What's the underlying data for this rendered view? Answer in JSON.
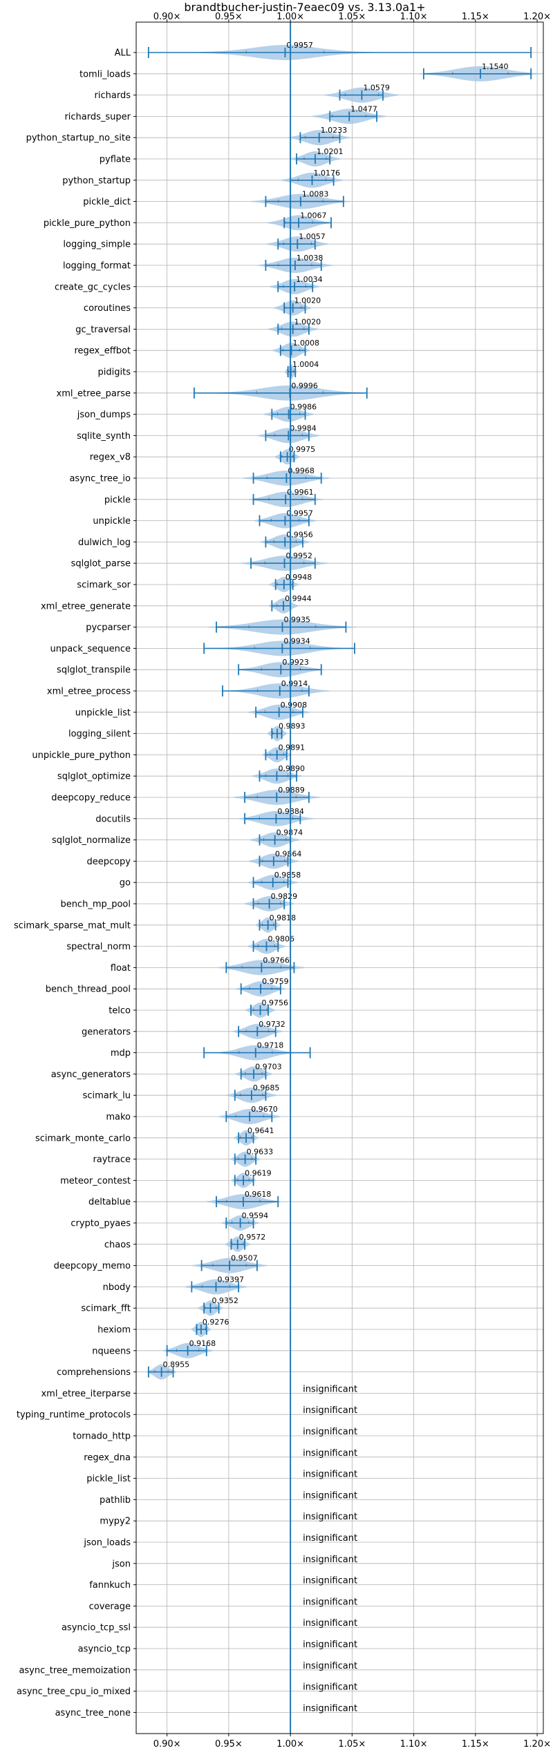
{
  "chart_data": {
    "type": "violin",
    "title": "brandtbucher-justin-7eaec09 vs. 3.13.0a1+",
    "xlim": [
      0.875,
      1.205
    ],
    "xticks": [
      0.9,
      0.95,
      1.0,
      1.05,
      1.1,
      1.15,
      1.2
    ],
    "xtick_labels": [
      "0.90×",
      "0.95×",
      "1.00×",
      "1.05×",
      "1.10×",
      "1.15×",
      "1.20×"
    ],
    "reference_line": 1.0,
    "grid": true,
    "colors": {
      "violin": "#a9c9e6",
      "stat": "#1f77b4",
      "grid": "#b0b0b0",
      "axis": "#000000"
    },
    "insignificant_text": "insignificant",
    "benchmarks": [
      {
        "name": "ALL",
        "mean": 0.9957,
        "label": "0.9957",
        "min": 0.885,
        "max": 1.195,
        "spread": 0.07
      },
      {
        "name": "tomli_loads",
        "mean": 1.154,
        "label": "1.1540",
        "min": 1.108,
        "max": 1.195,
        "spread": 0.05
      },
      {
        "name": "richards",
        "mean": 1.0579,
        "label": "1.0579",
        "min": 1.04,
        "max": 1.075,
        "spread": 0.03
      },
      {
        "name": "richards_super",
        "mean": 1.0477,
        "label": "1.0477",
        "min": 1.032,
        "max": 1.07,
        "spread": 0.03
      },
      {
        "name": "python_startup_no_site",
        "mean": 1.0233,
        "label": "1.0233",
        "min": 1.008,
        "max": 1.04,
        "spread": 0.025
      },
      {
        "name": "pyflate",
        "mean": 1.0201,
        "label": "1.0201",
        "min": 1.005,
        "max": 1.032,
        "spread": 0.02
      },
      {
        "name": "python_startup",
        "mean": 1.0176,
        "label": "1.0176",
        "min": 1.0,
        "max": 1.035,
        "spread": 0.025
      },
      {
        "name": "pickle_dict",
        "mean": 1.0083,
        "label": "1.0083",
        "min": 0.98,
        "max": 1.043,
        "spread": 0.04
      },
      {
        "name": "pickle_pure_python",
        "mean": 1.0067,
        "label": "1.0067",
        "min": 0.995,
        "max": 1.033,
        "spread": 0.025
      },
      {
        "name": "logging_simple",
        "mean": 1.0057,
        "label": "1.0057",
        "min": 0.99,
        "max": 1.02,
        "spread": 0.025
      },
      {
        "name": "logging_format",
        "mean": 1.0038,
        "label": "1.0038",
        "min": 0.98,
        "max": 1.025,
        "spread": 0.03
      },
      {
        "name": "create_gc_cycles",
        "mean": 1.0034,
        "label": "1.0034",
        "min": 0.99,
        "max": 1.018,
        "spread": 0.02
      },
      {
        "name": "coroutines",
        "mean": 1.002,
        "label": "1.0020",
        "min": 0.995,
        "max": 1.012,
        "spread": 0.015
      },
      {
        "name": "gc_traversal",
        "mean": 1.002,
        "label": "1.0020",
        "min": 0.99,
        "max": 1.015,
        "spread": 0.02
      },
      {
        "name": "regex_effbot",
        "mean": 1.0008,
        "label": "1.0008",
        "min": 0.992,
        "max": 1.012,
        "spread": 0.015
      },
      {
        "name": "pidigits",
        "mean": 1.0004,
        "label": "1.0004",
        "min": 0.998,
        "max": 1.004,
        "spread": 0.005
      },
      {
        "name": "xml_etree_parse",
        "mean": 0.9996,
        "label": "0.9996",
        "min": 0.922,
        "max": 1.062,
        "spread": 0.06
      },
      {
        "name": "json_dumps",
        "mean": 0.9986,
        "label": "0.9986",
        "min": 0.985,
        "max": 1.012,
        "spread": 0.02
      },
      {
        "name": "sqlite_synth",
        "mean": 0.9984,
        "label": "0.9984",
        "min": 0.98,
        "max": 1.015,
        "spread": 0.025
      },
      {
        "name": "regex_v8",
        "mean": 0.9975,
        "label": "0.9975",
        "min": 0.992,
        "max": 1.003,
        "spread": 0.01
      },
      {
        "name": "async_tree_io",
        "mean": 0.9968,
        "label": "0.9968",
        "min": 0.97,
        "max": 1.025,
        "spread": 0.035
      },
      {
        "name": "pickle",
        "mean": 0.9961,
        "label": "0.9961",
        "min": 0.97,
        "max": 1.02,
        "spread": 0.03
      },
      {
        "name": "unpickle",
        "mean": 0.9957,
        "label": "0.9957",
        "min": 0.975,
        "max": 1.015,
        "spread": 0.025
      },
      {
        "name": "dulwich_log",
        "mean": 0.9956,
        "label": "0.9956",
        "min": 0.98,
        "max": 1.01,
        "spread": 0.02
      },
      {
        "name": "sqlglot_parse",
        "mean": 0.9952,
        "label": "0.9952",
        "min": 0.968,
        "max": 1.02,
        "spread": 0.035
      },
      {
        "name": "scimark_sor",
        "mean": 0.9948,
        "label": "0.9948",
        "min": 0.988,
        "max": 1.002,
        "spread": 0.012
      },
      {
        "name": "xml_etree_generate",
        "mean": 0.9944,
        "label": "0.9944",
        "min": 0.985,
        "max": 1.0,
        "spread": 0.012
      },
      {
        "name": "pycparser",
        "mean": 0.9935,
        "label": "0.9935",
        "min": 0.94,
        "max": 1.045,
        "spread": 0.06
      },
      {
        "name": "unpack_sequence",
        "mean": 0.9934,
        "label": "0.9934",
        "min": 0.93,
        "max": 1.052,
        "spread": 0.05
      },
      {
        "name": "sqlglot_transpile",
        "mean": 0.9923,
        "label": "0.9923",
        "min": 0.958,
        "max": 1.025,
        "spread": 0.035
      },
      {
        "name": "xml_etree_process",
        "mean": 0.9914,
        "label": "0.9914",
        "min": 0.945,
        "max": 1.015,
        "spread": 0.04
      },
      {
        "name": "unpickle_list",
        "mean": 0.9908,
        "label": "0.9908",
        "min": 0.972,
        "max": 1.01,
        "spread": 0.025
      },
      {
        "name": "logging_silent",
        "mean": 0.9893,
        "label": "0.9893",
        "min": 0.985,
        "max": 0.993,
        "spread": 0.008
      },
      {
        "name": "unpickle_pure_python",
        "mean": 0.9891,
        "label": "0.9891",
        "min": 0.98,
        "max": 0.997,
        "spread": 0.012
      },
      {
        "name": "sqlglot_optimize",
        "mean": 0.989,
        "label": "0.9890",
        "min": 0.975,
        "max": 1.005,
        "spread": 0.02
      },
      {
        "name": "deepcopy_reduce",
        "mean": 0.9889,
        "label": "0.9889",
        "min": 0.963,
        "max": 1.015,
        "spread": 0.035
      },
      {
        "name": "docutils",
        "mean": 0.9884,
        "label": "0.9884",
        "min": 0.963,
        "max": 1.008,
        "spread": 0.03
      },
      {
        "name": "sqlglot_normalize",
        "mean": 0.9874,
        "label": "0.9874",
        "min": 0.975,
        "max": 1.0,
        "spread": 0.02
      },
      {
        "name": "deepcopy",
        "mean": 0.9864,
        "label": "0.9864",
        "min": 0.975,
        "max": 0.998,
        "spread": 0.02
      },
      {
        "name": "go",
        "mean": 0.9858,
        "label": "0.9858",
        "min": 0.97,
        "max": 0.998,
        "spread": 0.02
      },
      {
        "name": "bench_mp_pool",
        "mean": 0.9829,
        "label": "0.9829",
        "min": 0.97,
        "max": 0.995,
        "spread": 0.02
      },
      {
        "name": "scimark_sparse_mat_mult",
        "mean": 0.9818,
        "label": "0.9818",
        "min": 0.975,
        "max": 0.988,
        "spread": 0.01
      },
      {
        "name": "spectral_norm",
        "mean": 0.9806,
        "label": "0.9806",
        "min": 0.97,
        "max": 0.99,
        "spread": 0.015
      },
      {
        "name": "float",
        "mean": 0.9766,
        "label": "0.9766",
        "min": 0.948,
        "max": 1.003,
        "spread": 0.035
      },
      {
        "name": "bench_thread_pool",
        "mean": 0.9759,
        "label": "0.9759",
        "min": 0.96,
        "max": 0.992,
        "spread": 0.02
      },
      {
        "name": "telco",
        "mean": 0.9756,
        "label": "0.9756",
        "min": 0.968,
        "max": 0.982,
        "spread": 0.012
      },
      {
        "name": "generators",
        "mean": 0.9732,
        "label": "0.9732",
        "min": 0.958,
        "max": 0.988,
        "spread": 0.02
      },
      {
        "name": "mdp",
        "mean": 0.9718,
        "label": "0.9718",
        "min": 0.93,
        "max": 1.016,
        "spread": 0.03
      },
      {
        "name": "async_generators",
        "mean": 0.9703,
        "label": "0.9703",
        "min": 0.96,
        "max": 0.98,
        "spread": 0.015
      },
      {
        "name": "scimark_lu",
        "mean": 0.9685,
        "label": "0.9685",
        "min": 0.955,
        "max": 0.98,
        "spread": 0.02
      },
      {
        "name": "mako",
        "mean": 0.967,
        "label": "0.9670",
        "min": 0.948,
        "max": 0.985,
        "spread": 0.025
      },
      {
        "name": "scimark_monte_carlo",
        "mean": 0.9641,
        "label": "0.9641",
        "min": 0.958,
        "max": 0.97,
        "spread": 0.01
      },
      {
        "name": "raytrace",
        "mean": 0.9633,
        "label": "0.9633",
        "min": 0.955,
        "max": 0.972,
        "spread": 0.012
      },
      {
        "name": "meteor_contest",
        "mean": 0.9619,
        "label": "0.9619",
        "min": 0.955,
        "max": 0.97,
        "spread": 0.01
      },
      {
        "name": "deltablue",
        "mean": 0.9618,
        "label": "0.9618",
        "min": 0.94,
        "max": 0.99,
        "spread": 0.03
      },
      {
        "name": "crypto_pyaes",
        "mean": 0.9594,
        "label": "0.9594",
        "min": 0.948,
        "max": 0.97,
        "spread": 0.015
      },
      {
        "name": "chaos",
        "mean": 0.9572,
        "label": "0.9572",
        "min": 0.952,
        "max": 0.963,
        "spread": 0.01
      },
      {
        "name": "deepcopy_memo",
        "mean": 0.9507,
        "label": "0.9507",
        "min": 0.928,
        "max": 0.973,
        "spread": 0.03
      },
      {
        "name": "nbody",
        "mean": 0.9397,
        "label": "0.9397",
        "min": 0.92,
        "max": 0.958,
        "spread": 0.025
      },
      {
        "name": "scimark_fft",
        "mean": 0.9352,
        "label": "0.9352",
        "min": 0.93,
        "max": 0.942,
        "spread": 0.01
      },
      {
        "name": "hexiom",
        "mean": 0.9276,
        "label": "0.9276",
        "min": 0.924,
        "max": 0.932,
        "spread": 0.008
      },
      {
        "name": "nqueens",
        "mean": 0.9168,
        "label": "0.9168",
        "min": 0.9,
        "max": 0.932,
        "spread": 0.02
      },
      {
        "name": "comprehensions",
        "mean": 0.8955,
        "label": "0.8955",
        "min": 0.885,
        "max": 0.905,
        "spread": 0.012
      },
      {
        "name": "xml_etree_iterparse",
        "insignificant": true
      },
      {
        "name": "typing_runtime_protocols",
        "insignificant": true
      },
      {
        "name": "tornado_http",
        "insignificant": true
      },
      {
        "name": "regex_dna",
        "insignificant": true
      },
      {
        "name": "pickle_list",
        "insignificant": true
      },
      {
        "name": "pathlib",
        "insignificant": true
      },
      {
        "name": "mypy2",
        "insignificant": true
      },
      {
        "name": "json_loads",
        "insignificant": true
      },
      {
        "name": "json",
        "insignificant": true
      },
      {
        "name": "fannkuch",
        "insignificant": true
      },
      {
        "name": "coverage",
        "insignificant": true
      },
      {
        "name": "asyncio_tcp_ssl",
        "insignificant": true
      },
      {
        "name": "asyncio_tcp",
        "insignificant": true
      },
      {
        "name": "async_tree_memoization",
        "insignificant": true
      },
      {
        "name": "async_tree_cpu_io_mixed",
        "insignificant": true
      },
      {
        "name": "async_tree_none",
        "insignificant": true
      }
    ]
  }
}
